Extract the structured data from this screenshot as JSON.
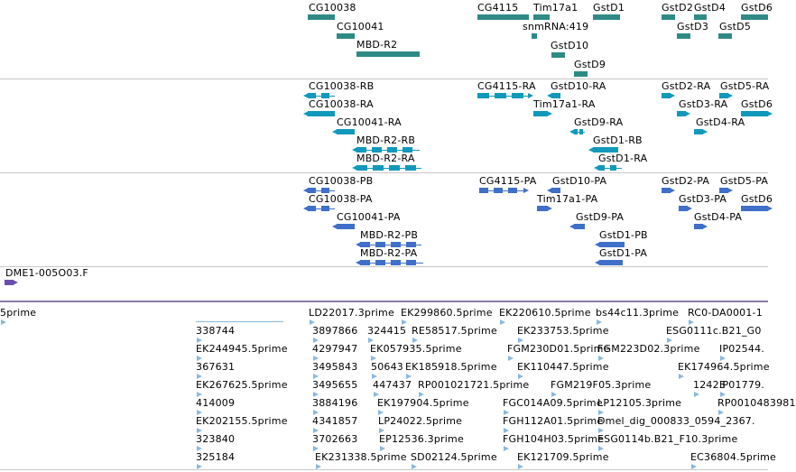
{
  "colors": {
    "gene": "#2f8a86",
    "transcript": "#1199bb",
    "protein": "#3f6fc8",
    "sts": "#6b4fb0",
    "est": "#8ab8de",
    "separator": "#c8c8c8",
    "divider_purple": "#8a7aa6"
  },
  "tracks": {
    "genes": {
      "labels": [
        "CG10038",
        "CG10041",
        "MBD-R2",
        "CG4115",
        "snmRNA:419",
        "Tim17a1",
        "GstD1",
        "GstD10",
        "GstD9",
        "GstD2",
        "GstD3",
        "GstD4",
        "GstD5",
        "GstD6"
      ]
    },
    "transcripts": {
      "labels": [
        "CG10038-RB",
        "CG10038-RA",
        "CG10041-RA",
        "MBD-R2-RB",
        "MBD-R2-RA",
        "CG4115-RA",
        "GstD10-RA",
        "Tim17a1-RA",
        "GstD9-RA",
        "GstD1-RB",
        "GstD1-RA",
        "GstD2-RA",
        "GstD5-RA",
        "GstD3-RA",
        "GstD6",
        "GstD4-RA"
      ]
    },
    "proteins": {
      "labels": [
        "CG10038-PB",
        "CG10038-PA",
        "CG10041-PA",
        "MBD-R2-PB",
        "MBD-R2-PA",
        "CG4115-PA",
        "GstD10-PA",
        "Tim17a1-PA",
        "GstD9-PA",
        "GstD1-PB",
        "GstD1-PA",
        "GstD2-PA",
        "GstD5-PA",
        "GstD3-PA",
        "GstD6",
        "GstD4-PA"
      ]
    },
    "sts": {
      "labels": [
        "DME1-005O03.F"
      ]
    },
    "ests": {
      "labels": [
        "5prime",
        "338744",
        "EK244945.5prime",
        "367631",
        "EK267625.5prime",
        "414009",
        "EK202155.5prime",
        "323840",
        "325184",
        "LD22017.3prime",
        "3897866",
        "4297947",
        "3495843",
        "3495655",
        "3884196",
        "4341857",
        "3702663",
        "EK299860.5prime",
        "324415",
        "RE58517.5prime",
        "EK057935.5prime",
        "50643",
        "EK185918.5prime",
        "447437",
        "RP001021721.5prime",
        "EK197904.5prime",
        "LP24022.5prime",
        "EP12536.3prime",
        "EK231338.5prime",
        "SD02124.5prime",
        "EK220610.5prime",
        "EK233753.5prime",
        "FGM230D01.5prime",
        "EK110447.5prime",
        "FGM219F05.3prime",
        "FGC014A09.5prime",
        "FGH112A01.5prime",
        "FGH104H03.5prime",
        "EK121709.5prime",
        "bs44c11.3prime",
        "FGM223D02.3prime",
        "LP12105.3prime",
        "Dmel_dig_000833_0594_2367.",
        "ESG0114b.B21_F10.3prime",
        "RC0-DA0001-1",
        "ESG0111c.B21_G0",
        "IP02544.",
        "EK174964.5prime",
        "12423",
        "IP01779.",
        "RP0010483981",
        "EC36804.5prime"
      ]
    }
  }
}
